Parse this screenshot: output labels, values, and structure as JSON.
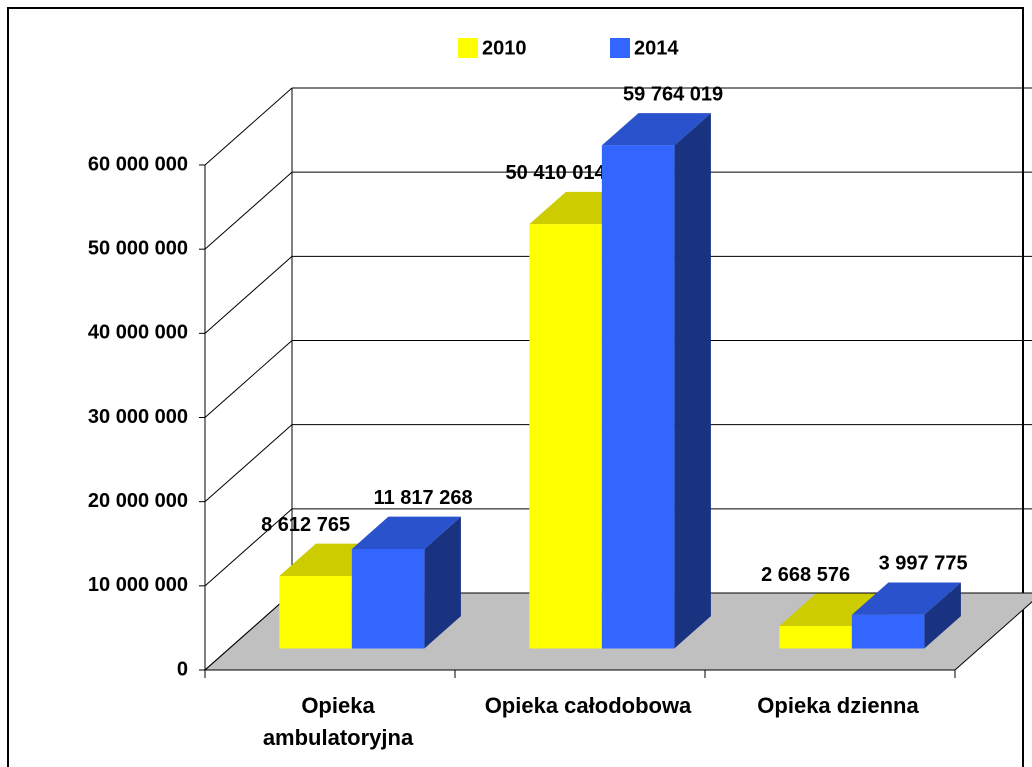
{
  "chart_data": {
    "type": "bar3d",
    "categories": [
      "Opieka ambulatoryjna",
      "Opieka całodobowa",
      "Opieka dzienna"
    ],
    "series": [
      {
        "name": "2010",
        "color": "#ffff00",
        "values": [
          8612765,
          50410014,
          2668576
        ],
        "value_labels": [
          "8 612 765",
          "50 410 014",
          "2 668 576"
        ]
      },
      {
        "name": "2014",
        "color": "#3366ff",
        "values": [
          11817268,
          59764019,
          3997775
        ],
        "value_labels": [
          "11 817 268",
          "59 764 019",
          "3 997 775"
        ]
      }
    ],
    "ylim": [
      0,
      60000000
    ],
    "yticks": [
      0,
      {
        "value": 10000000,
        "label": "10 000 000"
      },
      {
        "value": 20000000,
        "label": "20 000 000"
      },
      {
        "value": 30000000,
        "label": "30 000 000"
      },
      {
        "value": 40000000,
        "label": "40 000 000"
      },
      {
        "value": 50000000,
        "label": "50 000 000"
      },
      {
        "value": 60000000,
        "label": "60 000 000"
      }
    ],
    "grid": true
  }
}
